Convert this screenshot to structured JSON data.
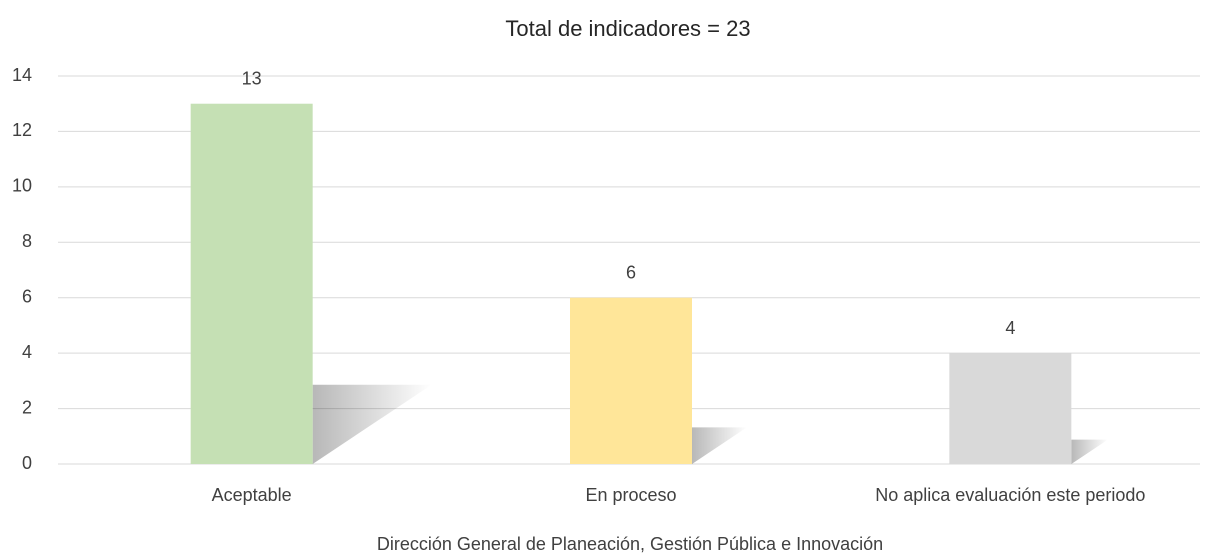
{
  "chart_data": {
    "type": "bar",
    "title": "Total de indicadores = 23",
    "categories": [
      "Aceptable",
      "En proceso",
      "No aplica evaluación este periodo"
    ],
    "values": [
      13,
      6,
      4
    ],
    "colors": [
      "#c5e0b4",
      "#ffe699",
      "#d9d9d9"
    ],
    "x_label": "Dirección General de Planeación, Gestión Pública e Innovación",
    "ylim": [
      0,
      14
    ],
    "yticks": [
      0,
      2,
      4,
      6,
      8,
      10,
      12,
      14
    ],
    "grid": true
  }
}
